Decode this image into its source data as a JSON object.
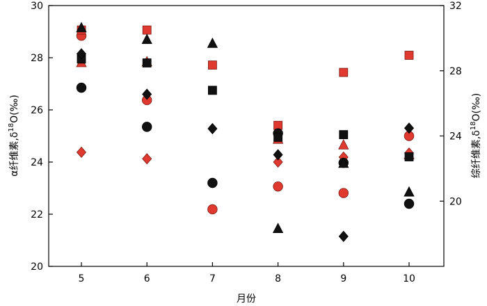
{
  "chart_data": {
    "type": "scatter",
    "xlabel": "月份",
    "ylabel_left": "α纤维素,δ18O(‰)",
    "ylabel_right": "综纤维素,δ18O(‰)",
    "x_ticks": [
      "5",
      "6",
      "7",
      "8",
      "9",
      "10"
    ],
    "ylim_left": [
      20,
      30
    ],
    "y_ticks_left": [
      20,
      22,
      24,
      26,
      28,
      30
    ],
    "ylim_right": [
      16,
      32
    ],
    "y_ticks_right": [
      20,
      24,
      28,
      32
    ],
    "grid": false,
    "legend": "none",
    "colors": {
      "black": "#111111",
      "red": "#e03a30"
    },
    "series": [
      {
        "axis": "left",
        "marker": "circle",
        "color": "black",
        "x": [
          5,
          6,
          7,
          8,
          9,
          10
        ],
        "y": [
          26.85,
          25.35,
          23.2,
          25.1,
          23.97,
          22.4
        ]
      },
      {
        "axis": "left",
        "marker": "square",
        "color": "black",
        "x": [
          5,
          6,
          7,
          8,
          9,
          10
        ],
        "y": [
          27.95,
          27.8,
          26.75,
          24.95,
          25.05,
          24.2
        ]
      },
      {
        "axis": "left",
        "marker": "triangle",
        "color": "black",
        "x": [
          5,
          6,
          7,
          8,
          9,
          10
        ],
        "y": [
          29.15,
          28.7,
          28.55,
          21.45,
          23.95,
          22.85
        ]
      },
      {
        "axis": "left",
        "marker": "diamond",
        "color": "black",
        "x": [
          5,
          6,
          7,
          8,
          9,
          10
        ],
        "y": [
          28.15,
          26.6,
          25.28,
          24.28,
          21.15,
          25.3
        ]
      },
      {
        "axis": "right",
        "marker": "circle",
        "color": "red",
        "x": [
          5,
          6,
          7,
          8,
          9,
          10
        ],
        "y": [
          30.15,
          26.2,
          19.5,
          20.9,
          20.5,
          24.0
        ]
      },
      {
        "axis": "right",
        "marker": "square",
        "color": "red",
        "x": [
          5,
          6,
          7,
          8,
          9,
          10
        ],
        "y": [
          30.5,
          30.5,
          28.35,
          24.65,
          27.9,
          28.95
        ]
      },
      {
        "axis": "right",
        "marker": "triangle",
        "color": "red",
        "x": [
          5,
          6,
          7,
          8,
          9,
          10
        ],
        "y": [
          28.5,
          28.55,
          null,
          23.8,
          23.45,
          22.85
        ]
      },
      {
        "axis": "right",
        "marker": "diamond",
        "color": "red",
        "x": [
          5,
          6,
          7,
          8,
          9,
          10
        ],
        "y": [
          23.0,
          22.6,
          null,
          22.4,
          22.7,
          22.95
        ]
      }
    ]
  }
}
